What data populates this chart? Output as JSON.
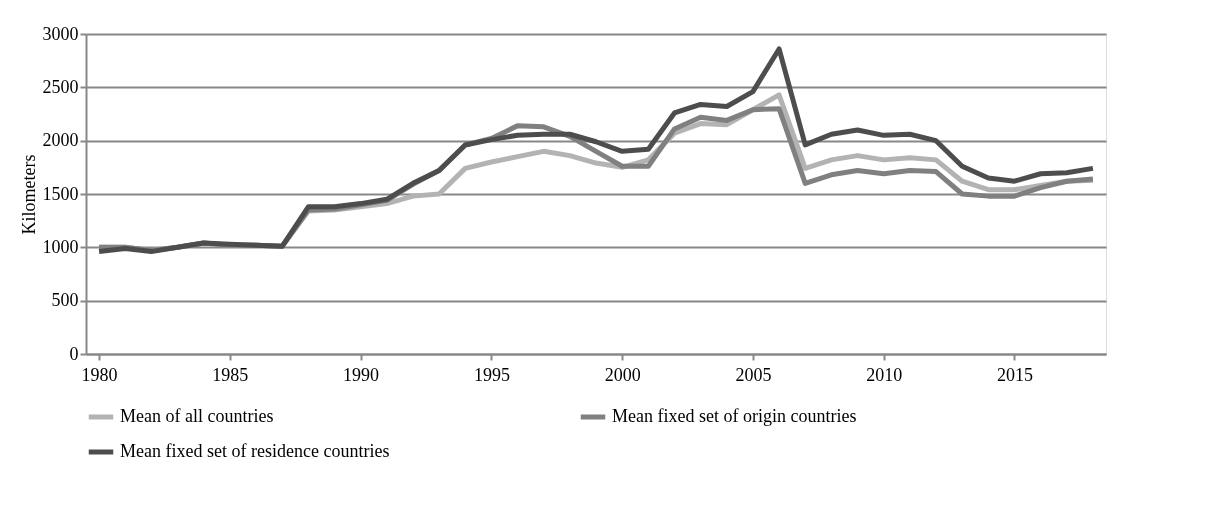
{
  "chart_data": {
    "type": "line",
    "ylabel": "Kilometers",
    "x": [
      1980,
      1981,
      1982,
      1983,
      1984,
      1985,
      1986,
      1987,
      1988,
      1989,
      1990,
      1991,
      1992,
      1993,
      1994,
      1995,
      1996,
      1997,
      1998,
      1999,
      2000,
      2001,
      2002,
      2003,
      2004,
      2005,
      2006,
      2007,
      2008,
      2009,
      2010,
      2011,
      2012,
      2013,
      2014,
      2015,
      2016,
      2017,
      2018
    ],
    "series": [
      {
        "name": "Mean of all countries",
        "color": "#b3b3b3",
        "values": [
          1000,
          1000,
          970,
          1000,
          1040,
          1020,
          1020,
          1010,
          1340,
          1350,
          1380,
          1410,
          1480,
          1500,
          1740,
          1800,
          1850,
          1900,
          1860,
          1790,
          1750,
          1820,
          2070,
          2160,
          2150,
          2290,
          2430,
          1740,
          1820,
          1860,
          1820,
          1840,
          1820,
          1620,
          1540,
          1540,
          1580,
          1620,
          1630
        ]
      },
      {
        "name": "Mean fixed set of origin countries",
        "color": "#808080",
        "values": [
          1000,
          1000,
          970,
          1000,
          1040,
          1020,
          1020,
          1010,
          1350,
          1360,
          1400,
          1440,
          1590,
          1720,
          1960,
          2020,
          2140,
          2130,
          2040,
          1900,
          1760,
          1760,
          2110,
          2220,
          2190,
          2290,
          2300,
          1600,
          1680,
          1720,
          1690,
          1720,
          1710,
          1500,
          1480,
          1480,
          1560,
          1620,
          1640
        ]
      },
      {
        "name": "Mean fixed set of residence countries",
        "color": "#4d4d4d",
        "values": [
          960,
          990,
          960,
          1000,
          1040,
          1030,
          1020,
          1010,
          1380,
          1380,
          1410,
          1450,
          1600,
          1720,
          1960,
          2010,
          2050,
          2060,
          2060,
          1990,
          1900,
          1920,
          2260,
          2340,
          2320,
          2460,
          2860,
          1960,
          2060,
          2100,
          2050,
          2060,
          2000,
          1760,
          1650,
          1620,
          1690,
          1700,
          1740
        ]
      }
    ],
    "xlim": [
      1979.5,
      2018.5
    ],
    "xticks": [
      1980,
      1985,
      1990,
      1995,
      2000,
      2005,
      2010,
      2015
    ],
    "ylim": [
      0,
      3000
    ],
    "yticks": [
      0,
      500,
      1000,
      1500,
      2000,
      2500,
      3000
    ],
    "grid": "y",
    "legend": "bottom",
    "marker": "none",
    "line_style": "solid"
  }
}
